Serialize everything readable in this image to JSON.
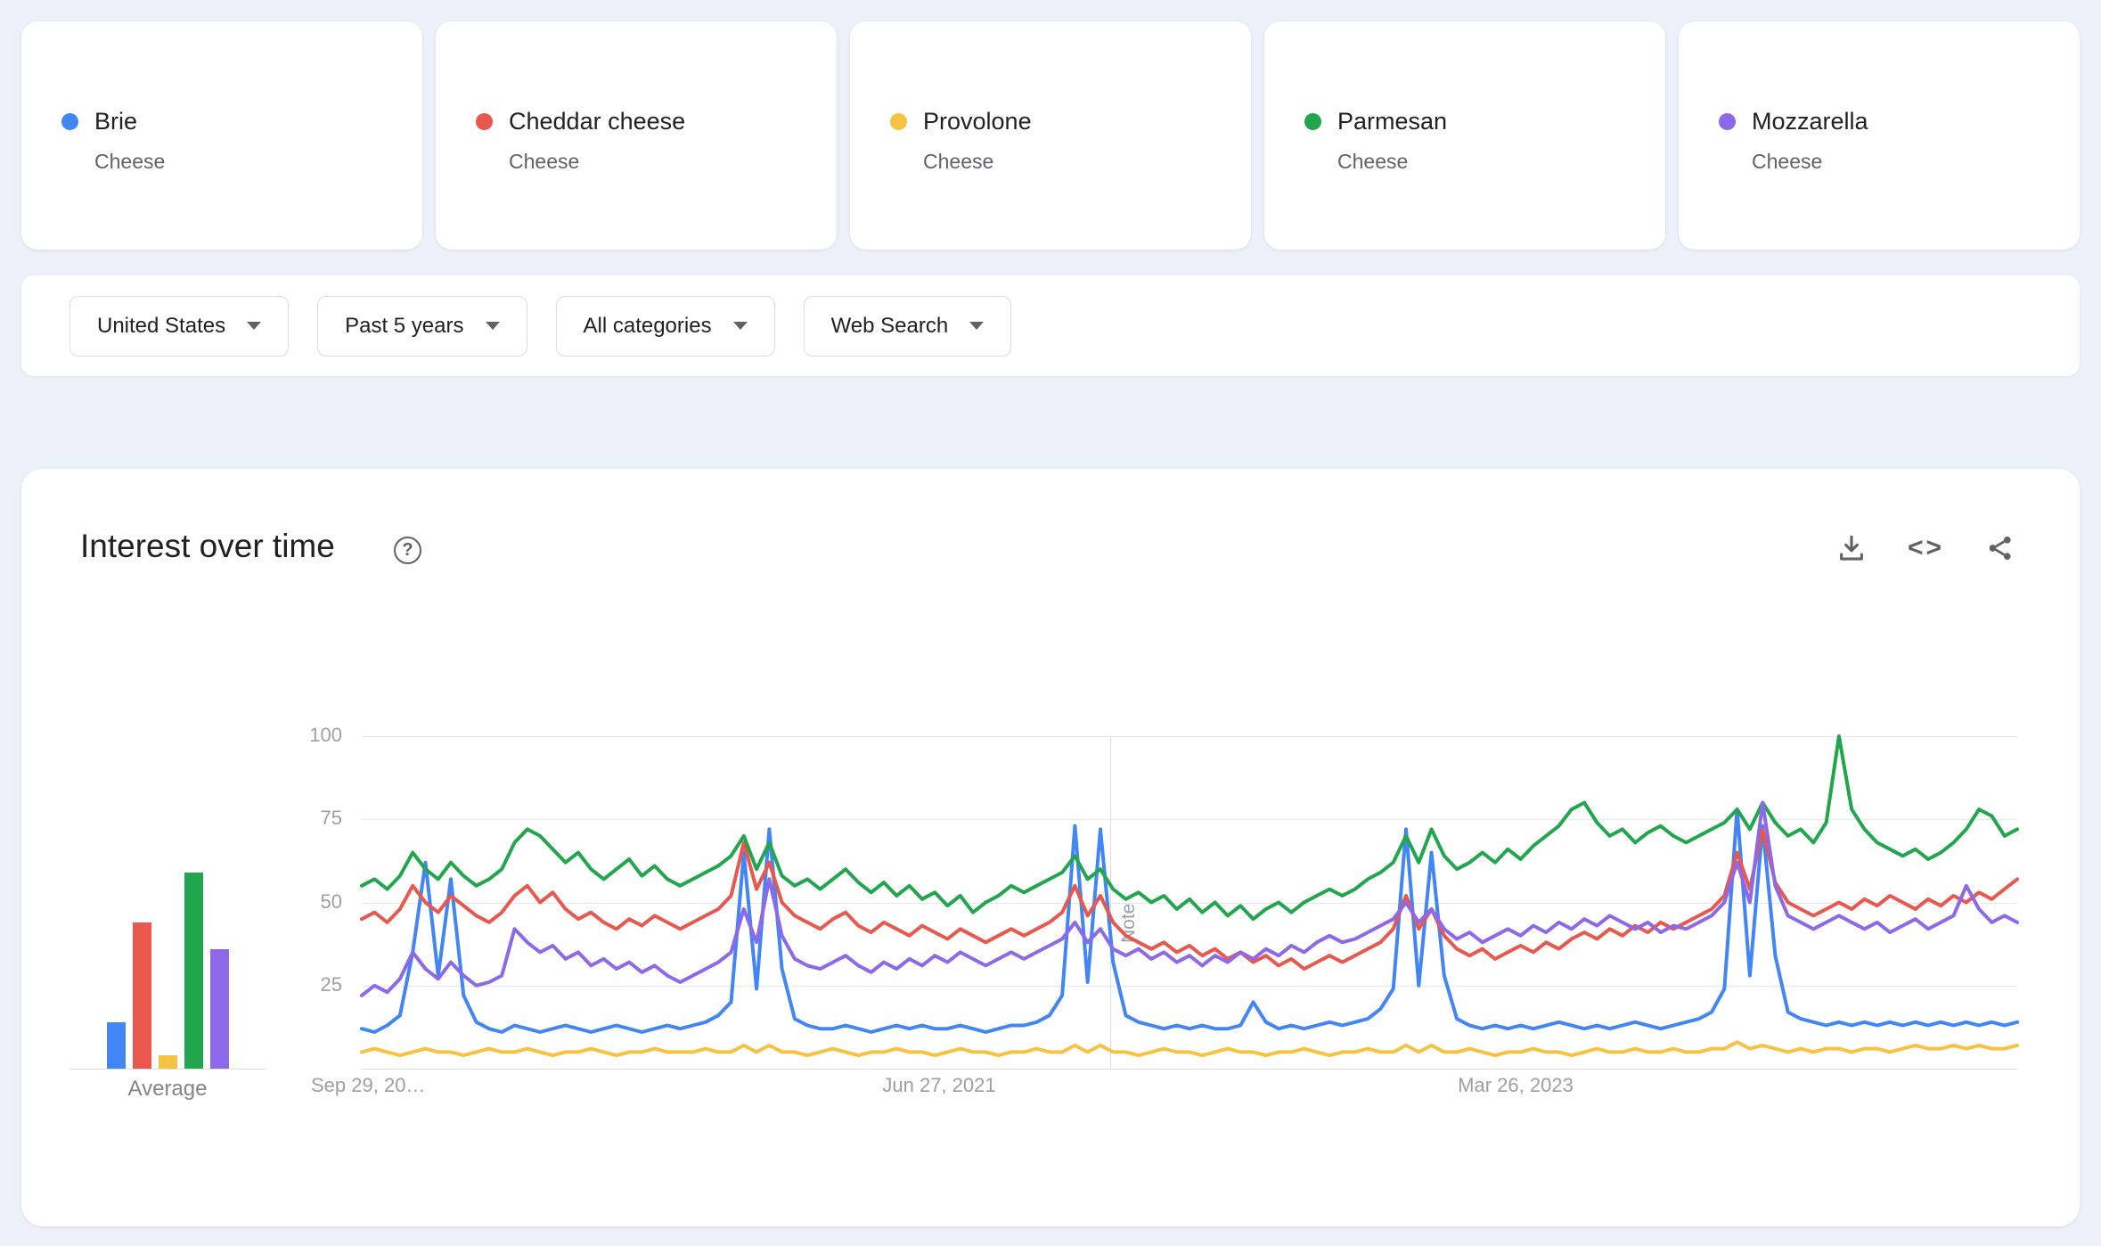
{
  "terms": [
    {
      "name": "Brie",
      "category": "Cheese",
      "color": "#4285f4"
    },
    {
      "name": "Cheddar cheese",
      "category": "Cheese",
      "color": "#e8584e"
    },
    {
      "name": "Provolone",
      "category": "Cheese",
      "color": "#f6c243"
    },
    {
      "name": "Parmesan",
      "category": "Cheese",
      "color": "#21a64e"
    },
    {
      "name": "Mozzarella",
      "category": "Cheese",
      "color": "#8d68e8"
    }
  ],
  "filters": [
    {
      "label": "United States"
    },
    {
      "label": "Past 5 years"
    },
    {
      "label": "All categories"
    },
    {
      "label": "Web Search"
    }
  ],
  "panel": {
    "title": "Interest over time"
  },
  "icons": {
    "help": "?",
    "embed": "<>"
  },
  "chart_data": {
    "type": "line",
    "title": "Interest over time",
    "ylim": [
      0,
      100
    ],
    "grid": true,
    "yticks": [
      "100",
      "75",
      "50",
      "25"
    ],
    "xticks": [
      "Sep 29, 20…",
      "Jun 27, 2021",
      "Mar 26, 2023"
    ],
    "note_label": "Note",
    "average_bars": {
      "label": "Average",
      "values": [
        14,
        44,
        4,
        59,
        36
      ]
    },
    "series": [
      {
        "name": "Brie",
        "values": [
          12,
          11,
          13,
          16,
          35,
          62,
          28,
          57,
          22,
          14,
          12,
          11,
          13,
          12,
          11,
          12,
          13,
          12,
          11,
          12,
          13,
          12,
          11,
          12,
          13,
          12,
          13,
          14,
          16,
          20,
          65,
          24,
          72,
          30,
          15,
          13,
          12,
          12,
          13,
          12,
          11,
          12,
          13,
          12,
          13,
          12,
          12,
          13,
          12,
          11,
          12,
          13,
          13,
          14,
          16,
          22,
          73,
          26,
          72,
          32,
          16,
          14,
          13,
          12,
          13,
          12,
          13,
          12,
          12,
          13,
          20,
          14,
          12,
          13,
          12,
          13,
          14,
          13,
          14,
          15,
          18,
          24,
          72,
          25,
          65,
          28,
          15,
          13,
          12,
          13,
          12,
          13,
          12,
          13,
          14,
          13,
          12,
          13,
          12,
          13,
          14,
          13,
          12,
          13,
          14,
          15,
          17,
          24,
          78,
          28,
          73,
          34,
          17,
          15,
          14,
          13,
          14,
          13,
          14,
          13,
          14,
          13,
          14,
          13,
          14,
          13,
          14,
          13,
          14,
          13,
          14
        ]
      },
      {
        "name": "Cheddar cheese",
        "values": [
          45,
          47,
          44,
          48,
          55,
          50,
          47,
          52,
          49,
          46,
          44,
          47,
          52,
          55,
          50,
          53,
          48,
          45,
          47,
          44,
          42,
          45,
          43,
          46,
          44,
          42,
          44,
          46,
          48,
          52,
          68,
          54,
          62,
          50,
          46,
          44,
          42,
          45,
          47,
          43,
          41,
          44,
          42,
          40,
          43,
          41,
          39,
          42,
          40,
          38,
          40,
          42,
          40,
          42,
          44,
          47,
          55,
          46,
          52,
          44,
          40,
          38,
          36,
          38,
          35,
          37,
          34,
          36,
          33,
          35,
          32,
          34,
          31,
          33,
          30,
          32,
          34,
          32,
          34,
          36,
          38,
          42,
          52,
          42,
          48,
          40,
          36,
          34,
          36,
          33,
          35,
          37,
          35,
          38,
          36,
          39,
          41,
          39,
          42,
          40,
          43,
          41,
          44,
          42,
          44,
          46,
          48,
          52,
          65,
          54,
          72,
          56,
          50,
          48,
          46,
          48,
          50,
          48,
          51,
          49,
          52,
          50,
          48,
          51,
          49,
          52,
          50,
          53,
          51,
          54,
          57
        ]
      },
      {
        "name": "Provolone",
        "values": [
          5,
          6,
          5,
          4,
          5,
          6,
          5,
          5,
          4,
          5,
          6,
          5,
          5,
          6,
          5,
          4,
          5,
          5,
          6,
          5,
          4,
          5,
          5,
          6,
          5,
          5,
          5,
          6,
          5,
          5,
          7,
          5,
          7,
          5,
          5,
          4,
          5,
          6,
          5,
          4,
          5,
          5,
          6,
          5,
          5,
          4,
          5,
          6,
          5,
          5,
          4,
          5,
          5,
          6,
          5,
          5,
          7,
          5,
          7,
          5,
          5,
          4,
          5,
          6,
          5,
          5,
          4,
          5,
          6,
          5,
          5,
          4,
          5,
          5,
          6,
          5,
          4,
          5,
          5,
          6,
          5,
          5,
          7,
          5,
          7,
          5,
          5,
          6,
          5,
          4,
          5,
          5,
          6,
          5,
          5,
          4,
          5,
          6,
          5,
          5,
          6,
          5,
          5,
          6,
          5,
          5,
          6,
          6,
          8,
          6,
          7,
          6,
          5,
          6,
          5,
          6,
          6,
          5,
          6,
          6,
          5,
          6,
          7,
          6,
          6,
          7,
          6,
          7,
          6,
          6,
          7
        ]
      },
      {
        "name": "Parmesan",
        "values": [
          55,
          57,
          54,
          58,
          65,
          60,
          57,
          62,
          58,
          55,
          57,
          60,
          68,
          72,
          70,
          66,
          62,
          65,
          60,
          57,
          60,
          63,
          58,
          61,
          57,
          55,
          57,
          59,
          61,
          64,
          70,
          60,
          68,
          58,
          55,
          57,
          54,
          57,
          60,
          56,
          53,
          56,
          52,
          55,
          51,
          53,
          49,
          52,
          47,
          50,
          52,
          55,
          53,
          55,
          57,
          59,
          64,
          57,
          60,
          54,
          51,
          53,
          50,
          52,
          48,
          51,
          47,
          50,
          46,
          49,
          45,
          48,
          50,
          47,
          50,
          52,
          54,
          52,
          54,
          57,
          59,
          62,
          70,
          62,
          72,
          64,
          60,
          62,
          65,
          62,
          66,
          63,
          67,
          70,
          73,
          78,
          80,
          74,
          70,
          72,
          68,
          71,
          73,
          70,
          68,
          70,
          72,
          74,
          78,
          72,
          80,
          74,
          70,
          72,
          68,
          74,
          100,
          78,
          72,
          68,
          66,
          64,
          66,
          63,
          65,
          68,
          72,
          78,
          76,
          70,
          72
        ]
      },
      {
        "name": "Mozzarella",
        "values": [
          22,
          25,
          23,
          27,
          35,
          30,
          27,
          32,
          28,
          25,
          26,
          28,
          42,
          38,
          35,
          37,
          33,
          35,
          31,
          33,
          30,
          32,
          29,
          31,
          28,
          26,
          28,
          30,
          32,
          35,
          48,
          38,
          57,
          40,
          33,
          31,
          30,
          32,
          34,
          31,
          29,
          32,
          30,
          33,
          31,
          34,
          32,
          35,
          33,
          31,
          33,
          35,
          33,
          35,
          37,
          39,
          44,
          38,
          42,
          36,
          34,
          36,
          33,
          35,
          32,
          34,
          31,
          34,
          32,
          35,
          33,
          36,
          34,
          37,
          35,
          38,
          40,
          38,
          39,
          41,
          43,
          45,
          50,
          44,
          48,
          42,
          39,
          41,
          38,
          40,
          42,
          40,
          43,
          41,
          44,
          42,
          45,
          43,
          46,
          44,
          42,
          44,
          41,
          43,
          42,
          44,
          46,
          50,
          62,
          50,
          80,
          55,
          46,
          44,
          42,
          44,
          46,
          44,
          42,
          44,
          41,
          43,
          45,
          42,
          44,
          46,
          55,
          48,
          44,
          46,
          44
        ]
      }
    ]
  }
}
